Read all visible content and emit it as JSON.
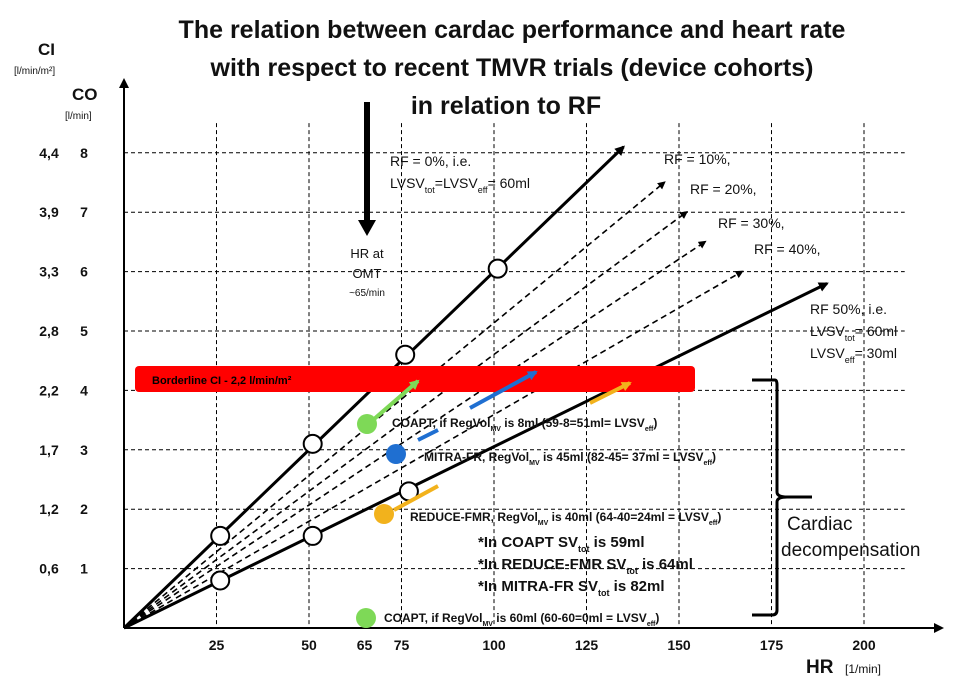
{
  "title": {
    "line1": "The relation between cardac performance and heart rate",
    "line2": "with respect to recent TMVR trials (device cohorts)",
    "line3": "in relation to RF"
  },
  "axes": {
    "ci_label": "CI",
    "ci_unit": "[l/min/m²]",
    "co_label": "CO",
    "co_unit": "[l/min]",
    "hr_label": "HR",
    "hr_unit": "[1/min]"
  },
  "chart_data": {
    "type": "line",
    "x_ticks": [
      25,
      50,
      65,
      75,
      100,
      125,
      150,
      175,
      200
    ],
    "x_tick_labels": [
      "25",
      "50",
      "65",
      "75",
      "100",
      "125",
      "150",
      "175",
      "200"
    ],
    "co_ticks": [
      1,
      2,
      3,
      4,
      5,
      6,
      7,
      8
    ],
    "co_tick_labels": [
      "1",
      "2",
      "3",
      "4",
      "5",
      "6",
      "7",
      "8"
    ],
    "ci_tick_labels": [
      "0,6",
      "1,2",
      "1,7",
      "2,2",
      "2,8",
      "3,3",
      "3,9",
      "4,4"
    ],
    "xlim": [
      0,
      225
    ],
    "ylim": [
      0,
      9
    ],
    "lines": [
      {
        "kind": "solid",
        "end": [
          135,
          8.1
        ]
      },
      {
        "kind": "dashed",
        "end": [
          146,
          7.5
        ]
      },
      {
        "kind": "dashed",
        "end": [
          152,
          7.0
        ]
      },
      {
        "kind": "dashed",
        "end": [
          157,
          6.5
        ]
      },
      {
        "kind": "dashed",
        "end": [
          167,
          6.0
        ]
      },
      {
        "kind": "solid",
        "end": [
          190,
          5.8
        ]
      }
    ],
    "points": [
      {
        "x": 26,
        "y": 1.55
      },
      {
        "x": 51,
        "y": 3.1
      },
      {
        "x": 76,
        "y": 4.6
      },
      {
        "x": 101,
        "y": 6.05
      },
      {
        "x": 26,
        "y": 0.8
      },
      {
        "x": 51,
        "y": 1.55
      },
      {
        "x": 77,
        "y": 2.3
      }
    ],
    "borderline_label": "Borderline CI - 2,2 l/min/m²",
    "rf_labels": [
      {
        "id": "rf0",
        "l1": "RF = 0%, i.e.",
        "l2a": "LVSV",
        "l2b": "tot",
        "l2c": "=LVSV",
        "l2d": "eff",
        "l2e": "= 60ml"
      },
      {
        "id": "rf10",
        "text": "RF = 10%,"
      },
      {
        "id": "rf20",
        "text": "RF = 20%,"
      },
      {
        "id": "rf30",
        "text": "RF = 30%,"
      },
      {
        "id": "rf40",
        "text": "RF = 40%,"
      },
      {
        "id": "rf50",
        "l1": "RF 50%, i.e.",
        "l2a": "LVSV",
        "l2b": "tot",
        "l2c": "= 60ml",
        "l3a": "LVSV",
        "l3b": "eff",
        "l3c": "= 30ml"
      }
    ],
    "hr_omt": {
      "line1": "HR at",
      "line2": "OMT",
      "line3": "~65/min"
    },
    "trials": [
      {
        "id": "coapt8",
        "color": "#7ed957",
        "a": "COAPT, if RegVol",
        "b": "MV",
        "c": " is 8ml (59-8=51ml= LVSV",
        "d": "eff",
        "e": ")"
      },
      {
        "id": "mitra",
        "color": "#1f6fd1",
        "a": "MITRA-FR, RegVol",
        "b": "MV",
        "c": " is 45ml (82-45= 37ml = LVSV",
        "d": "eff",
        "e": ")"
      },
      {
        "id": "reduce",
        "color": "#f2b21c",
        "a": "REDUCE-FMR, RegVol",
        "b": "MV",
        "c": " is 40ml (64-40=24ml = LVSV",
        "d": "eff",
        "e": ")"
      },
      {
        "id": "coapt60",
        "color": "#7ed957",
        "a": "COAPT, if RegVol",
        "b": "MV",
        "c": " is 60ml (60-60=0ml = LVSV",
        "d": "eff",
        "e": ")"
      }
    ],
    "notes": [
      {
        "a": "*In COAPT SV",
        "b": "tot",
        "c": " is 59ml"
      },
      {
        "a": "*In REDUCE-FMR SV",
        "b": "tot",
        "c": " is 64ml"
      },
      {
        "a": "*In MITRA-FR SV",
        "b": "tot",
        "c": " is 82ml"
      }
    ],
    "cardiac": {
      "line1": "Cardiac",
      "line2": "decompensation"
    }
  }
}
